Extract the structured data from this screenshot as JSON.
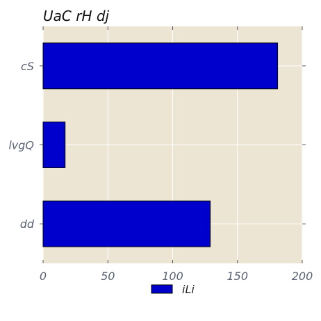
{
  "chart_data": {
    "type": "bar",
    "orientation": "horizontal",
    "title": "UaC rH dj",
    "xlabel": "",
    "ylabel": "",
    "categories": [
      "cS",
      "lvgQ",
      "dd"
    ],
    "series": [
      {
        "name": "iLi",
        "values": [
          181,
          17,
          129
        ]
      }
    ],
    "xlim": [
      0,
      200
    ],
    "xticks": [
      0,
      50,
      100,
      150,
      200
    ],
    "grid": true,
    "legend_position": "bottom-center",
    "colors": {
      "bar": "#0000cc",
      "bar_edge": "#000000",
      "plot_background": "#ede5d4",
      "grid": "#ffffff",
      "tick_label": "#5a6272",
      "title": "#111111"
    }
  }
}
